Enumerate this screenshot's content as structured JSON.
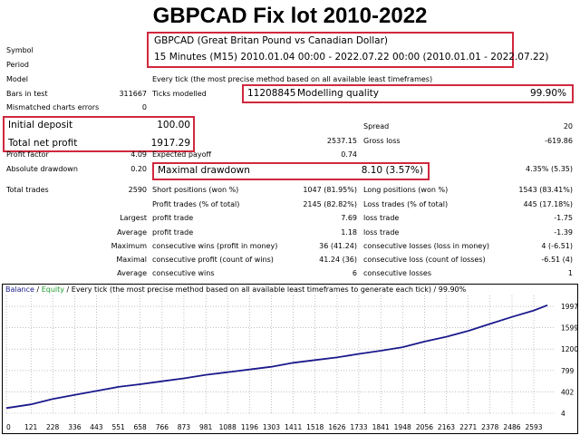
{
  "title": "GBPCAD Fix lot 2010-2022",
  "settings": {
    "symbol_label": "Symbol",
    "symbol_value": "GBPCAD (Great Britan Pound vs Canadian Dollar)",
    "period_label": "Period",
    "period_value": "15 Minutes (M15) 2010.01.04 00:00 - 2022.07.22 00:00 (2010.01.01 - 2022.07.22)",
    "model_label": "Model",
    "model_value": "Every tick (the most precise method based on all available least timeframes)",
    "bars_label": "Bars in test",
    "bars_value": "311667",
    "ticks_label": "Ticks modelled",
    "ticks_value": "11208845",
    "quality_label": "Modelling quality",
    "quality_value": "99.90%",
    "mismatched_label": "Mismatched charts errors",
    "mismatched_value": "0"
  },
  "summary": {
    "initial_deposit_label": "Initial deposit",
    "initial_deposit_value": "100.00",
    "spread_label": "Spread",
    "spread_value": "20",
    "total_net_profit_label": "Total net profit",
    "total_net_profit_value": "1917.29",
    "gross_profit_value": "2537.15",
    "gross_loss_label": "Gross loss",
    "gross_loss_value": "-619.86",
    "profit_factor_label": "Profit factor",
    "profit_factor_value": "4.09",
    "expected_payoff_label": "Expected payoff",
    "expected_payoff_value": "0.74",
    "absolute_drawdown_label": "Absolute drawdown",
    "absolute_drawdown_value": "0.20",
    "maximal_drawdown_label": "Maximal drawdown",
    "maximal_drawdown_value": "8.10 (3.57%)",
    "relative_drawdown_value": "4.35% (5.35)"
  },
  "trades": {
    "total_trades_label": "Total trades",
    "total_trades_value": "2590",
    "short_label": "Short positions (won %)",
    "short_value": "1047 (81.95%)",
    "long_label": "Long positions (won %)",
    "long_value": "1543 (83.41%)",
    "profit_trades_label": "Profit trades (% of total)",
    "profit_trades_value": "2145 (82.82%)",
    "loss_trades_label": "Loss trades (% of total)",
    "loss_trades_value": "445 (17.18%)",
    "rows": [
      {
        "prefix": "Largest",
        "a_label": "profit trade",
        "a_value": "7.69",
        "b_label": "loss trade",
        "b_value": "-1.75"
      },
      {
        "prefix": "Average",
        "a_label": "profit trade",
        "a_value": "1.18",
        "b_label": "loss trade",
        "b_value": "-1.39"
      },
      {
        "prefix": "Maximum",
        "a_label": "consecutive wins (profit in money)",
        "a_value": "36 (41.24)",
        "b_label": "consecutive losses (loss in money)",
        "b_value": "4 (-6.51)"
      },
      {
        "prefix": "Maximal",
        "a_label": "consecutive profit (count of wins)",
        "a_value": "41.24 (36)",
        "b_label": "consecutive loss (count of losses)",
        "b_value": "-6.51 (4)"
      },
      {
        "prefix": "Average",
        "a_label": "consecutive wins",
        "a_value": "6",
        "b_label": "consecutive losses",
        "b_value": "1"
      }
    ]
  },
  "legend": {
    "balance": "Balance",
    "sep": " / ",
    "equity": "Equity",
    "rest": " / Every tick (the most precise method based on all available least timeframes to generate each tick) / 99.90%"
  },
  "colors": {
    "highlight": "#d0283e",
    "balance_line": "#1a1a8c",
    "equity_line": "#1f9b2e",
    "grid": "#9a9a9a"
  },
  "chart_data": {
    "type": "line",
    "x_ticks": [
      "0",
      "121",
      "228",
      "336",
      "443",
      "551",
      "658",
      "766",
      "873",
      "981",
      "1088",
      "1196",
      "1303",
      "1411",
      "1518",
      "1626",
      "1733",
      "1841",
      "1948",
      "2056",
      "2163",
      "2271",
      "2378",
      "2486",
      "2593"
    ],
    "y_ticks": [
      "4",
      "402",
      "799",
      "1200",
      "1599",
      "1997"
    ],
    "xlim": [
      0,
      2700
    ],
    "ylim": [
      4,
      2200
    ],
    "series": [
      {
        "name": "Balance",
        "x": [
          0,
          121,
          228,
          336,
          443,
          551,
          658,
          766,
          873,
          981,
          1088,
          1196,
          1303,
          1411,
          1518,
          1626,
          1733,
          1841,
          1948,
          2056,
          2163,
          2271,
          2378,
          2486,
          2593,
          2660
        ],
        "y": [
          100,
          170,
          270,
          345,
          420,
          495,
          545,
          600,
          655,
          720,
          770,
          820,
          870,
          945,
          995,
          1045,
          1110,
          1170,
          1235,
          1340,
          1430,
          1540,
          1670,
          1800,
          1920,
          2017
        ]
      }
    ]
  }
}
